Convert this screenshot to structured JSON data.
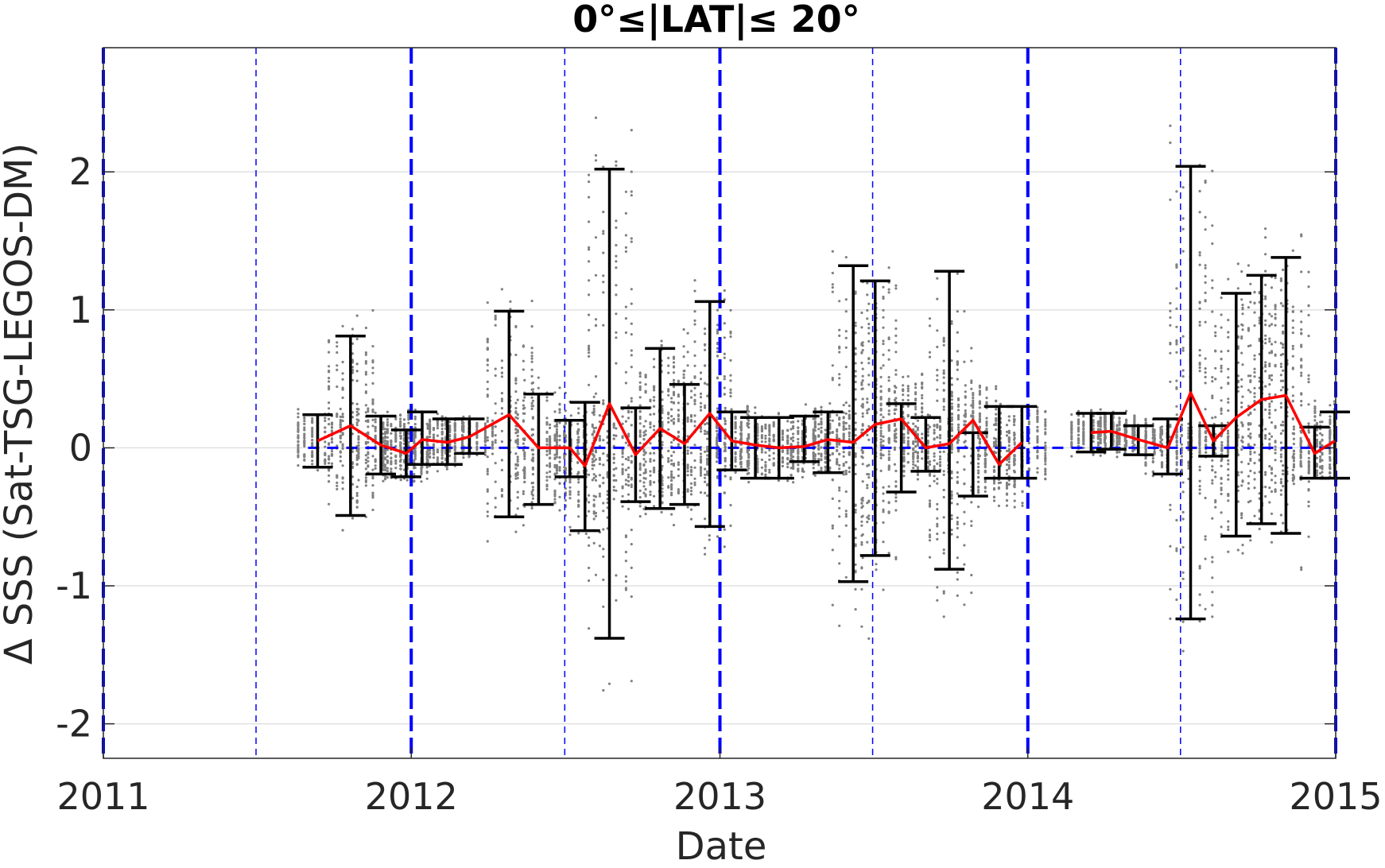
{
  "chart_data": {
    "type": "line",
    "title": "0°≤|LAT|≤ 20°",
    "xlabel": "Date",
    "ylabel": "Δ SSS (Sat-TSG-LEGOS-DM)",
    "xlim": [
      "2011-01-01",
      "2015-01-01"
    ],
    "ylim": [
      -2.25,
      2.9
    ],
    "grid": true,
    "x_ticks": [
      "2011",
      "2012",
      "2013",
      "2014",
      "2015"
    ],
    "y_ticks": [
      "-2",
      "-1",
      "0",
      "1",
      "2"
    ],
    "reference_line": {
      "y": 0,
      "color": "#0000ff",
      "style": "dashed"
    },
    "year_boundaries": [
      "2011-01-01",
      "2012-01-01",
      "2013-01-01",
      "2014-01-01",
      "2015-01-01"
    ],
    "half_year_lines": [
      "2011-07-01",
      "2012-07-01",
      "2013-07-01",
      "2014-07-01"
    ],
    "colors": {
      "mean_line": "#ff0000",
      "error_bars": "#000000",
      "scatter": "#808080",
      "reference": "#0000ff",
      "grid": "#e0e0e0"
    },
    "series": [
      {
        "type": "line",
        "x": [
          "2011-09-12",
          "2011-10-21",
          "2011-11-26",
          "2011-12-26",
          "2012-01-14",
          "2012-02-13",
          "2012-03-10",
          "2012-04-26",
          "2012-05-31",
          "2012-07-07",
          "2012-07-25",
          "2012-08-23",
          "2012-09-23",
          "2012-10-22",
          "2012-11-20",
          "2012-12-20",
          "2013-01-15",
          "2013-02-12",
          "2013-03-12",
          "2013-04-11",
          "2013-05-09",
          "2013-06-08",
          "2013-07-04",
          "2013-08-04",
          "2013-09-02",
          "2013-09-30",
          "2013-10-28",
          "2013-11-28",
          "2013-12-25",
          "2014-03-17",
          "2014-04-10",
          "2014-05-12",
          "2014-06-16",
          "2014-07-13",
          "2014-08-09",
          "2014-09-05",
          "2014-10-05",
          "2014-11-03",
          "2014-12-07",
          "2014-12-31"
        ],
        "y": [
          0.05,
          0.16,
          0.02,
          -0.04,
          0.06,
          0.04,
          0.08,
          0.24,
          0.0,
          0.0,
          -0.13,
          0.32,
          -0.05,
          0.14,
          0.03,
          0.25,
          0.05,
          0.02,
          0.0,
          0.01,
          0.06,
          0.04,
          0.17,
          0.21,
          0.0,
          0.03,
          0.2,
          -0.12,
          0.04,
          0.11,
          0.12,
          0.06,
          0.0,
          0.4,
          0.05,
          0.22,
          0.35,
          0.38,
          -0.04,
          0.05
        ]
      },
      {
        "type": "errorbar",
        "x": [
          "2011-09-12",
          "2011-10-21",
          "2011-11-26",
          "2011-12-26",
          "2012-01-14",
          "2012-02-13",
          "2012-03-10",
          "2012-04-26",
          "2012-05-31",
          "2012-07-07",
          "2012-07-25",
          "2012-08-23",
          "2012-09-23",
          "2012-10-22",
          "2012-11-20",
          "2012-12-20",
          "2013-01-15",
          "2013-02-12",
          "2013-03-12",
          "2013-04-11",
          "2013-05-09",
          "2013-06-08",
          "2013-07-04",
          "2013-08-04",
          "2013-09-02",
          "2013-09-30",
          "2013-10-28",
          "2013-11-28",
          "2013-12-25",
          "2014-03-17",
          "2014-04-10",
          "2014-05-12",
          "2014-06-16",
          "2014-07-13",
          "2014-08-09",
          "2014-09-05",
          "2014-10-05",
          "2014-11-03",
          "2014-12-07",
          "2014-12-31"
        ],
        "lower": [
          -0.14,
          -0.49,
          -0.19,
          -0.21,
          -0.12,
          -0.12,
          -0.04,
          -0.5,
          -0.41,
          -0.21,
          -0.6,
          -1.38,
          -0.39,
          -0.44,
          -0.41,
          -0.57,
          -0.16,
          -0.22,
          -0.22,
          -0.1,
          -0.18,
          -0.97,
          -0.78,
          -0.32,
          -0.17,
          -0.88,
          -0.35,
          -0.22,
          -0.22,
          -0.03,
          -0.01,
          -0.05,
          -0.19,
          -1.24,
          -0.06,
          -0.64,
          -0.55,
          -0.62,
          -0.22,
          -0.22
        ],
        "upper": [
          0.24,
          0.81,
          0.23,
          0.13,
          0.26,
          0.21,
          0.21,
          0.99,
          0.39,
          0.2,
          0.33,
          2.02,
          0.29,
          0.72,
          0.46,
          1.06,
          0.26,
          0.22,
          0.22,
          0.23,
          0.26,
          1.32,
          1.21,
          0.32,
          0.22,
          1.28,
          0.11,
          0.3,
          0.3,
          0.25,
          0.25,
          0.16,
          0.21,
          2.04,
          0.16,
          1.12,
          1.25,
          1.38,
          0.15,
          0.26
        ]
      }
    ]
  }
}
